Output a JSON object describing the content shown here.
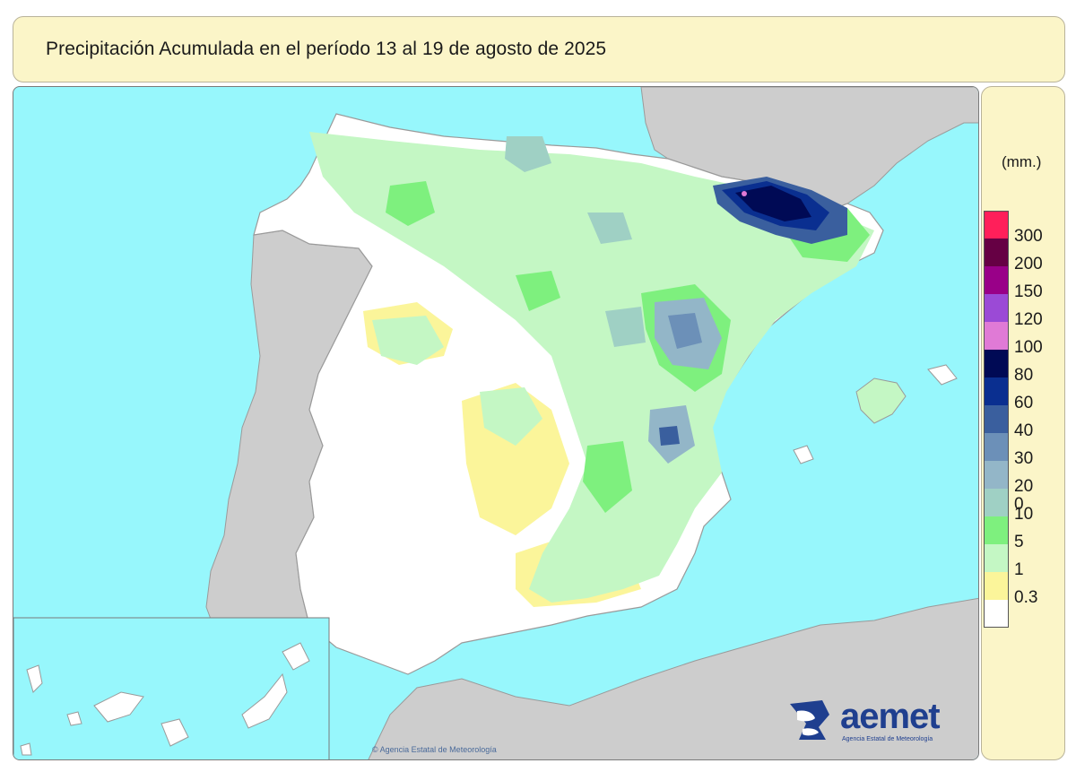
{
  "map_title": "Precipitación Acumulada en el período 13 al 19 de agosto de 2025",
  "legend": {
    "unit": "(mm.)",
    "classes": [
      {
        "label": "300",
        "color": "#ff1f5a"
      },
      {
        "label": "200",
        "color": "#660044"
      },
      {
        "label": "150",
        "color": "#990088"
      },
      {
        "label": "120",
        "color": "#9b4ad6"
      },
      {
        "label": "100",
        "color": "#e07ad6"
      },
      {
        "label": "80",
        "color": "#000a55"
      },
      {
        "label": "60",
        "color": "#0a2f90"
      },
      {
        "label": "40",
        "color": "#3a5f9e"
      },
      {
        "label": "30",
        "color": "#6c90b8"
      },
      {
        "label": "20",
        "color": "#93b6c8"
      },
      {
        "label": "10",
        "color": "#9fd0c4"
      },
      {
        "label": "5",
        "color": "#7ef07e"
      },
      {
        "label": "1",
        "color": "#c4f7c4"
      },
      {
        "label": "0.3",
        "color": "#fbf59a"
      },
      {
        "label": "",
        "color": "#ffffff"
      }
    ],
    "bottom_label": "0"
  },
  "map_colors": {
    "sea": "#97f7fc",
    "land_outside": "#cdcdcd",
    "border": "#9a9a9a"
  },
  "logo": {
    "wordmark": "aemet",
    "subtitle": "Agencia Estatal de Meteorología"
  },
  "credit": "© Agencia Estatal de Meteorología"
}
